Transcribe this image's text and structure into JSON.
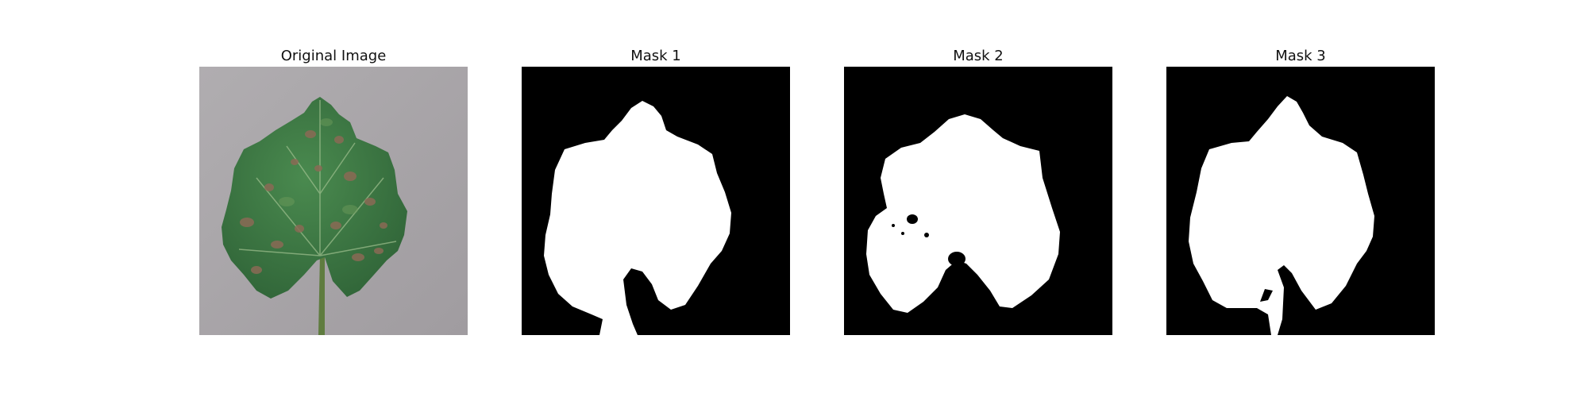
{
  "panels": [
    {
      "title": "Original Image"
    },
    {
      "title": "Mask 1"
    },
    {
      "title": "Mask 2"
    },
    {
      "title": "Mask 3"
    }
  ],
  "colors": {
    "background_photo": "#a9a6a8",
    "leaf_green": "#3f7a45",
    "leaf_dark": "#2d5c34",
    "lesion_brown": "#8a6a55",
    "mask_fg": "#ffffff",
    "mask_bg": "#000000"
  }
}
